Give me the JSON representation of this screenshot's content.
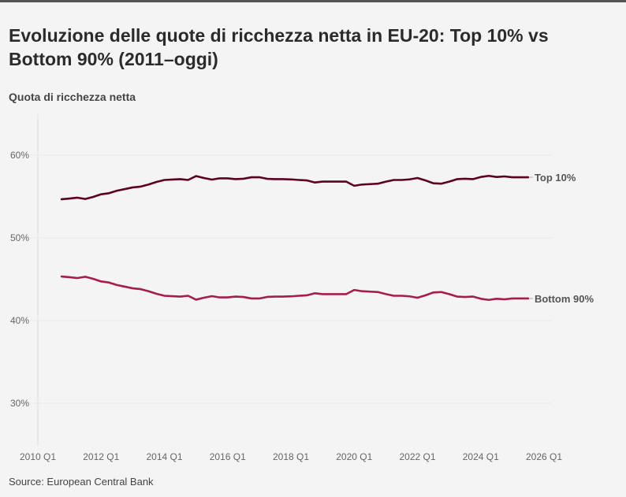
{
  "chart_data": {
    "type": "line",
    "title": "Evoluzione delle quote di ricchezza netta in EU-20: Top 10% vs Bottom 90% (2011–oggi)",
    "ylabel": "Quota di ricchezza netta",
    "source": "Source: European Central Bank",
    "ylim": [
      25,
      65
    ],
    "yticks": [
      "30%",
      "40%",
      "50%",
      "60%"
    ],
    "ytick_values": [
      30,
      40,
      50,
      60
    ],
    "xticks": [
      "2010 Q1",
      "2012 Q1",
      "2014 Q1",
      "2016 Q1",
      "2018 Q1",
      "2020 Q1",
      "2022 Q1",
      "2024 Q1",
      "2026 Q1"
    ],
    "grid": true,
    "legend": "direct labels at line ends",
    "start_quarter": "2010 Q4",
    "series": [
      {
        "name": "Top 10%",
        "color": "#5e0024",
        "values": [
          54.67,
          54.76,
          54.86,
          54.7,
          54.95,
          55.27,
          55.4,
          55.7,
          55.9,
          56.1,
          56.2,
          56.45,
          56.76,
          57.0,
          57.05,
          57.1,
          57.0,
          57.47,
          57.24,
          57.05,
          57.2,
          57.2,
          57.1,
          57.15,
          57.33,
          57.33,
          57.14,
          57.1,
          57.1,
          57.07,
          57.0,
          56.95,
          56.7,
          56.8,
          56.8,
          56.8,
          56.8,
          56.3,
          56.45,
          56.5,
          56.55,
          56.8,
          57.0,
          57.0,
          57.07,
          57.24,
          56.95,
          56.6,
          56.55,
          56.8,
          57.1,
          57.15,
          57.1,
          57.36,
          57.5,
          57.36,
          57.43,
          57.33,
          57.33,
          57.33
        ]
      },
      {
        "name": "Bottom 90%",
        "color": "#a51d4c",
        "values": [
          45.33,
          45.24,
          45.14,
          45.3,
          45.05,
          44.73,
          44.6,
          44.3,
          44.1,
          43.9,
          43.8,
          43.55,
          43.24,
          43.0,
          42.95,
          42.9,
          43.0,
          42.53,
          42.76,
          42.95,
          42.8,
          42.8,
          42.9,
          42.85,
          42.67,
          42.67,
          42.86,
          42.9,
          42.9,
          42.93,
          43.0,
          43.05,
          43.3,
          43.2,
          43.2,
          43.2,
          43.2,
          43.7,
          43.55,
          43.5,
          43.45,
          43.2,
          43.0,
          43.0,
          42.93,
          42.76,
          43.05,
          43.4,
          43.45,
          43.2,
          42.9,
          42.85,
          42.9,
          42.64,
          42.5,
          42.64,
          42.57,
          42.67,
          42.67,
          42.67
        ]
      }
    ]
  }
}
